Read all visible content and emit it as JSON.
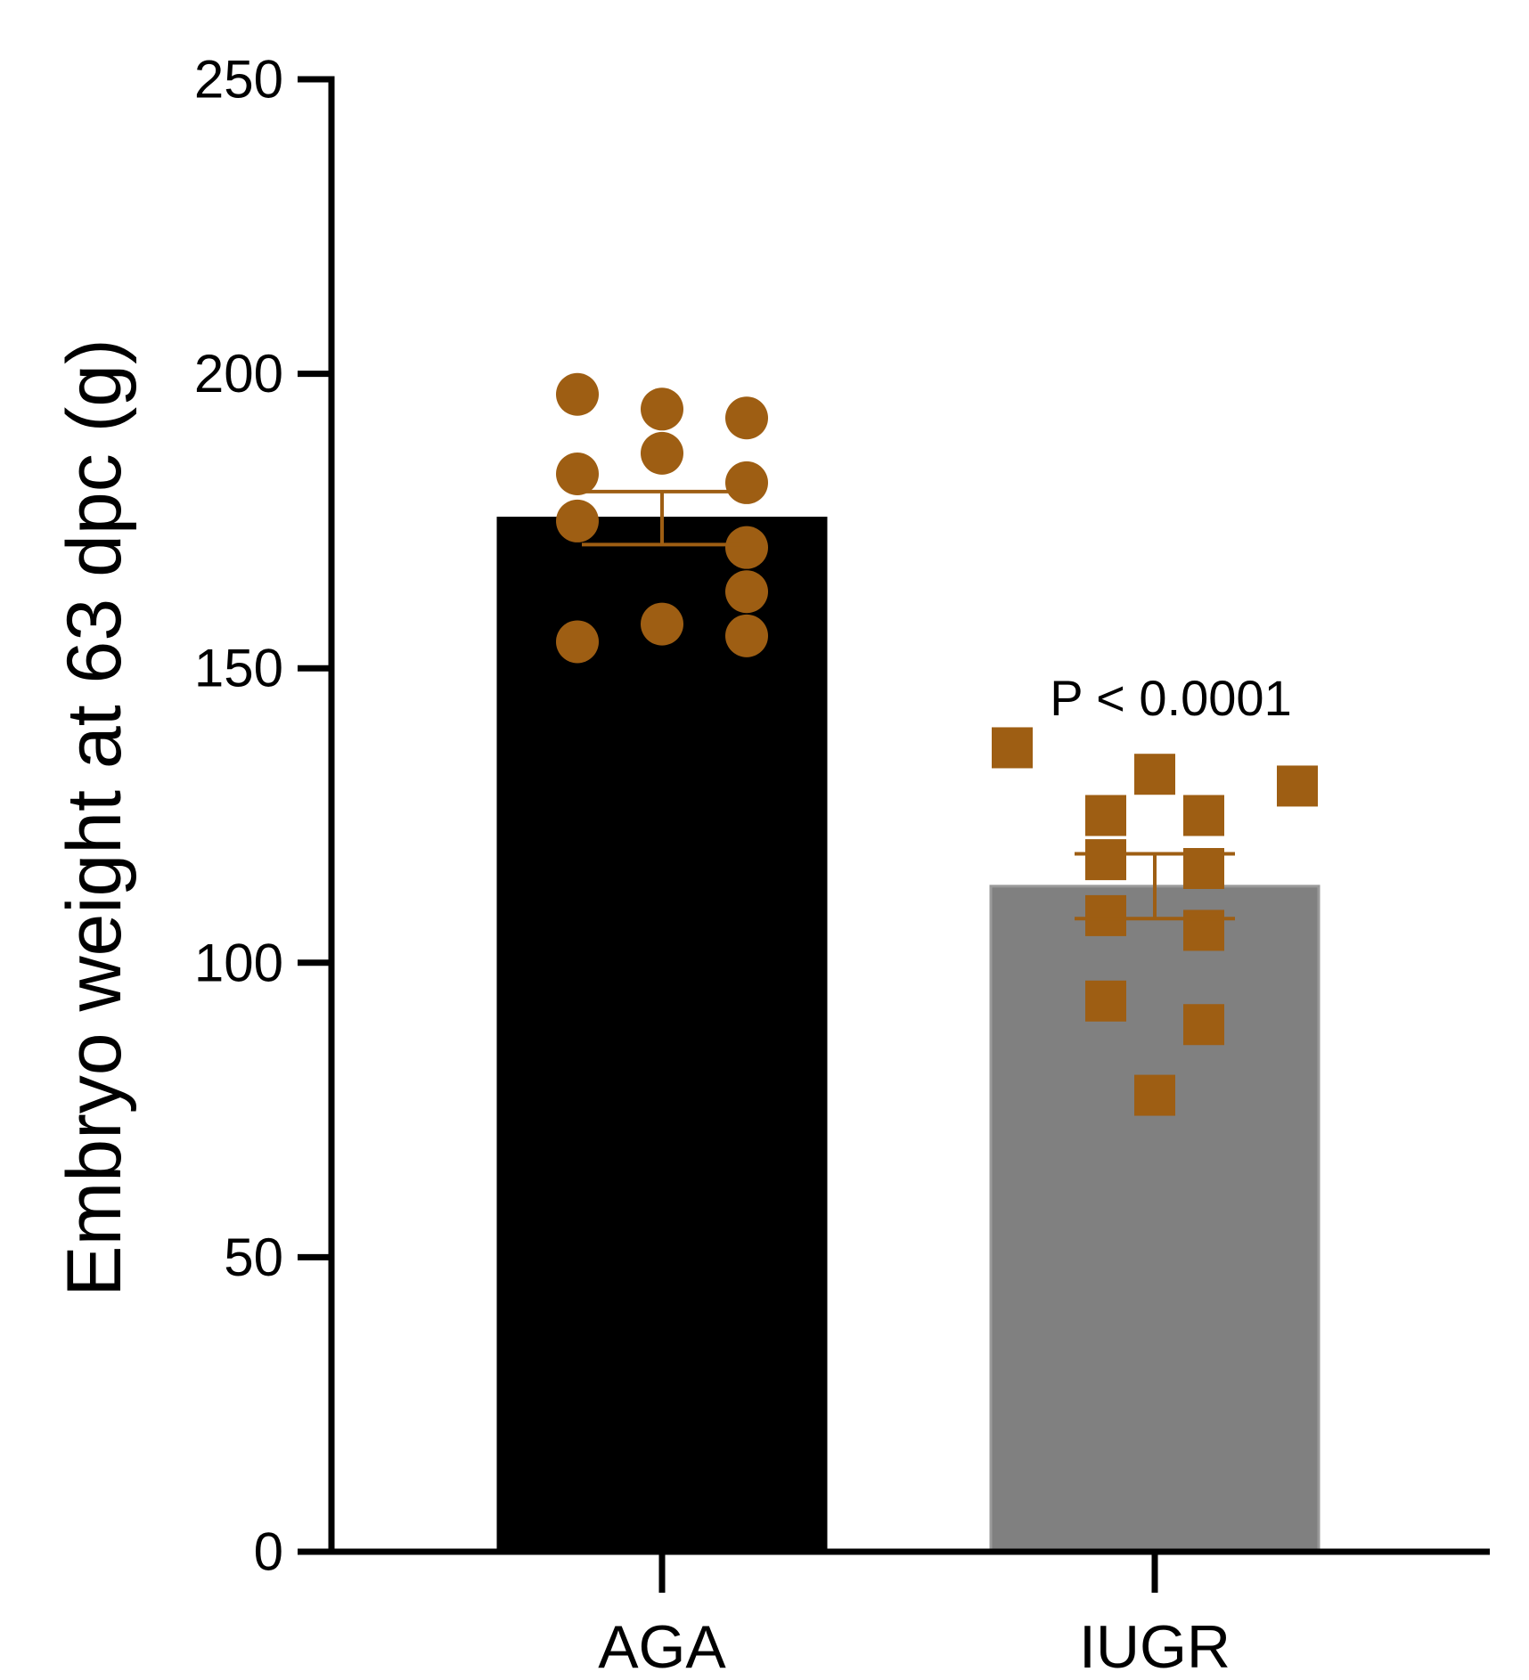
{
  "chart_data": {
    "type": "bar",
    "title": "",
    "xlabel": "",
    "ylabel": "Embryo weight at 63 dpc (g)",
    "ylim": [
      0,
      250
    ],
    "yticks": [
      0,
      50,
      100,
      150,
      200,
      250
    ],
    "ytick_labels": [
      "0",
      "50",
      "100",
      "150",
      "200",
      "250"
    ],
    "grid": false,
    "categories": [
      "AGA",
      "IUGR"
    ],
    "means": [
      175.5,
      113
    ],
    "sem": [
      4.5,
      5.5
    ],
    "bar_colors": [
      "#000000",
      "#808080"
    ],
    "point_color": "#9e5e13",
    "points": [
      {
        "category": "AGA",
        "marker": "circle",
        "values": [
          196.5,
          194,
          192.5,
          186.5,
          183,
          181.5,
          175,
          170.5,
          163,
          157.5,
          155.5,
          154.5
        ]
      },
      {
        "category": "IUGR",
        "marker": "square",
        "values": [
          136.5,
          132,
          130,
          125,
          125,
          117.5,
          116,
          108,
          105.5,
          93.5,
          89.5,
          77.5
        ]
      }
    ],
    "annotations": [
      {
        "text": "P < 0.0001",
        "category": "IUGR",
        "y": 145
      }
    ]
  }
}
